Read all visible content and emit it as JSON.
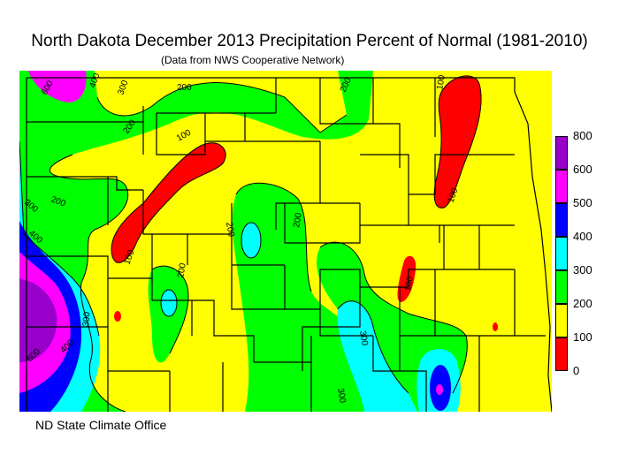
{
  "title": "North Dakota December 2013 Precipitation Percent of Normal (1981-2010)",
  "subtitle": "(Data from NWS Cooperative Network)",
  "footer": "ND State Climate Office",
  "legend": {
    "labels": [
      "800",
      "600",
      "500",
      "400",
      "300",
      "200",
      "100",
      "0"
    ],
    "colors": [
      "#9900cc",
      "#ff00ff",
      "#0000ff",
      "#00ffff",
      "#00ff00",
      "#ffff00",
      "#ff0000"
    ]
  },
  "contour_labels": [
    "600",
    "400",
    "300",
    "200",
    "200",
    "200",
    "200",
    "200",
    "200",
    "200",
    "300",
    "300",
    "300",
    "300",
    "400",
    "400",
    "600",
    "100",
    "100",
    "100",
    "100",
    "100"
  ],
  "colors": {
    "yellow": "#ffff00",
    "green": "#00ff00",
    "cyan": "#00ffff",
    "blue": "#0000ff",
    "magenta": "#ff00ff",
    "purple": "#9900cc",
    "red": "#ff0000"
  }
}
